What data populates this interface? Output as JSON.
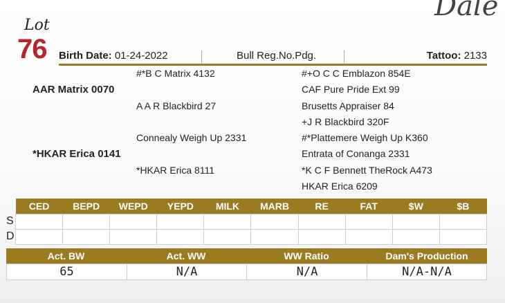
{
  "corner_script": "Dalé",
  "lot": {
    "label": "Lot",
    "number": "76"
  },
  "header": {
    "birth_label": "Birth Date:",
    "birth_value": "01-24-2022",
    "reg": "Bull Reg.No.Pdg.",
    "tattoo_label": "Tattoo:",
    "tattoo_value": "2133"
  },
  "pedigree": {
    "sire": "AAR Matrix 0070",
    "sire_sire": "#*B C Matrix 4132",
    "sire_dam": "A A R Blackbird 27",
    "sire_sire_sire": "#+O C C Emblazon 854E",
    "sire_sire_dam": "CAF Pure Pride Ext 99",
    "sire_dam_sire": "Brusetts Appraiser 84",
    "sire_dam_dam": "+J R Blackbird 320F",
    "dam": "*HKAR Erica 0141",
    "dam_sire": "Connealy Weigh Up 2331",
    "dam_dam": "*HKAR Erica 8111",
    "dam_sire_sire": "#*Plattemere Weigh Up K360",
    "dam_sire_dam": "Entrata of Conanga 2331",
    "dam_dam_sire": "*K C F Bennett TheRock A473",
    "dam_dam_dam": "HKAR Erica 6209"
  },
  "epd": {
    "headers": [
      "CED",
      "BEPD",
      "WEPD",
      "YEPD",
      "MILK",
      "MARB",
      "RE",
      "FAT",
      "$W",
      "$B"
    ],
    "row_labels": [
      "S",
      "D"
    ]
  },
  "performance": {
    "headers": [
      "Act. BW",
      "Act. WW",
      "WW Ratio",
      "Dam's Production"
    ],
    "values": [
      "65",
      "N/A",
      "N/A",
      "N/A-N/A"
    ]
  },
  "colors": {
    "gold": "#9a7b1f",
    "lot_red": "#b5262a"
  }
}
